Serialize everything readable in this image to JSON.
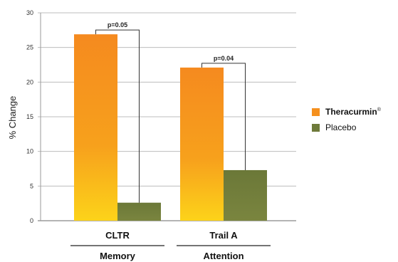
{
  "chart_data": {
    "type": "bar",
    "ylabel": "% Change",
    "ylim": [
      0,
      30
    ],
    "yticks": [
      0,
      5,
      10,
      15,
      20,
      25,
      30
    ],
    "grid": true,
    "categories": [
      "CLTR",
      "Trail A"
    ],
    "groups": [
      "Memory",
      "Attention"
    ],
    "series": [
      {
        "name": "Theracurmin",
        "name_suffix": "®",
        "color": "#f5901e",
        "values": [
          26.9,
          22.1
        ]
      },
      {
        "name": "Placebo",
        "color": "#6e7a3a",
        "values": [
          2.6,
          7.3
        ]
      }
    ],
    "annotations": [
      {
        "text": "p=0.05",
        "category": "CLTR"
      },
      {
        "text": "p=0.04",
        "category": "Trail A"
      }
    ],
    "legend_position": "right"
  }
}
